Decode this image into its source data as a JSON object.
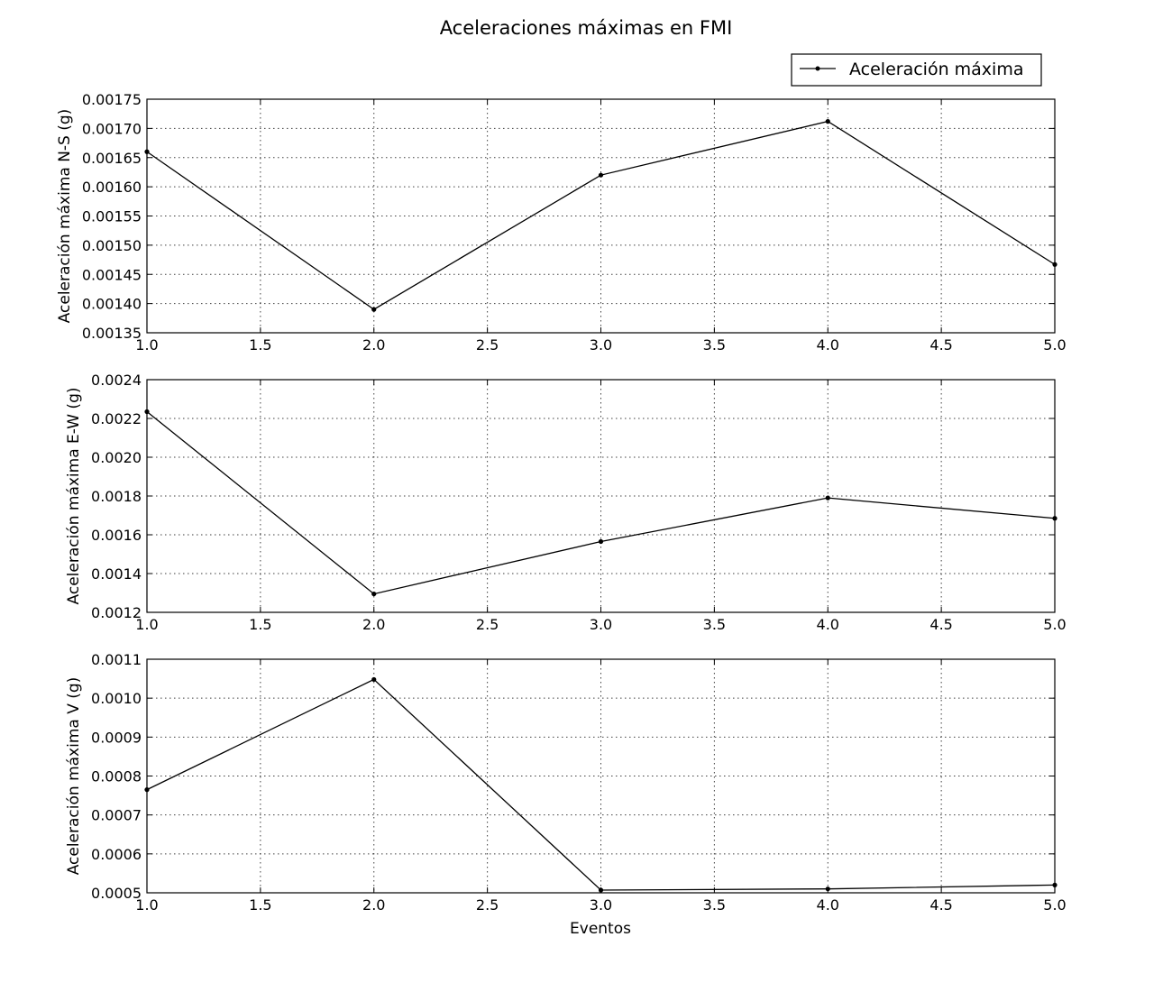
{
  "figure": {
    "title": "Aceleraciones máximas en FMI",
    "xlabel": "Eventos"
  },
  "legend": {
    "label": "Aceleración máxima",
    "placement": "upper-right"
  },
  "chart_data": [
    {
      "type": "line",
      "ylabel": "Aceleración máxima N-S (g)",
      "x": [
        1,
        2,
        3,
        4,
        5
      ],
      "series": [
        {
          "name": "Aceleración máxima",
          "values": [
            0.00166,
            0.00139,
            0.00162,
            0.001712,
            0.001467
          ]
        }
      ],
      "xlim": [
        1.0,
        5.0
      ],
      "ylim": [
        0.00135,
        0.00175
      ],
      "xticks": [
        "1.0",
        "1.5",
        "2.0",
        "2.5",
        "3.0",
        "3.5",
        "4.0",
        "4.5",
        "5.0"
      ],
      "yticks": [
        "0.00135",
        "0.00140",
        "0.00145",
        "0.00150",
        "0.00155",
        "0.00160",
        "0.00165",
        "0.00170",
        "0.00175"
      ],
      "grid": true
    },
    {
      "type": "line",
      "ylabel": "Aceleración máxima E-W (g)",
      "x": [
        1,
        2,
        3,
        4,
        5
      ],
      "series": [
        {
          "name": "Aceleración máxima",
          "values": [
            0.002235,
            0.001295,
            0.001565,
            0.00179,
            0.001685
          ]
        }
      ],
      "xlim": [
        1.0,
        5.0
      ],
      "ylim": [
        0.0012,
        0.0024
      ],
      "xticks": [
        "1.0",
        "1.5",
        "2.0",
        "2.5",
        "3.0",
        "3.5",
        "4.0",
        "4.5",
        "5.0"
      ],
      "yticks": [
        "0.0012",
        "0.0014",
        "0.0016",
        "0.0018",
        "0.0020",
        "0.0022",
        "0.0024"
      ],
      "grid": true
    },
    {
      "type": "line",
      "ylabel": "Aceleración máxima V (g)",
      "x": [
        1,
        2,
        3,
        4,
        5
      ],
      "series": [
        {
          "name": "Aceleración máxima",
          "values": [
            0.000765,
            0.001048,
            0.000507,
            0.00051,
            0.00052
          ]
        }
      ],
      "xlim": [
        1.0,
        5.0
      ],
      "ylim": [
        0.0005,
        0.0011
      ],
      "xticks": [
        "1.0",
        "1.5",
        "2.0",
        "2.5",
        "3.0",
        "3.5",
        "4.0",
        "4.5",
        "5.0"
      ],
      "yticks": [
        "0.0005",
        "0.0006",
        "0.0007",
        "0.0008",
        "0.0009",
        "0.0010",
        "0.0011"
      ],
      "grid": true
    }
  ]
}
